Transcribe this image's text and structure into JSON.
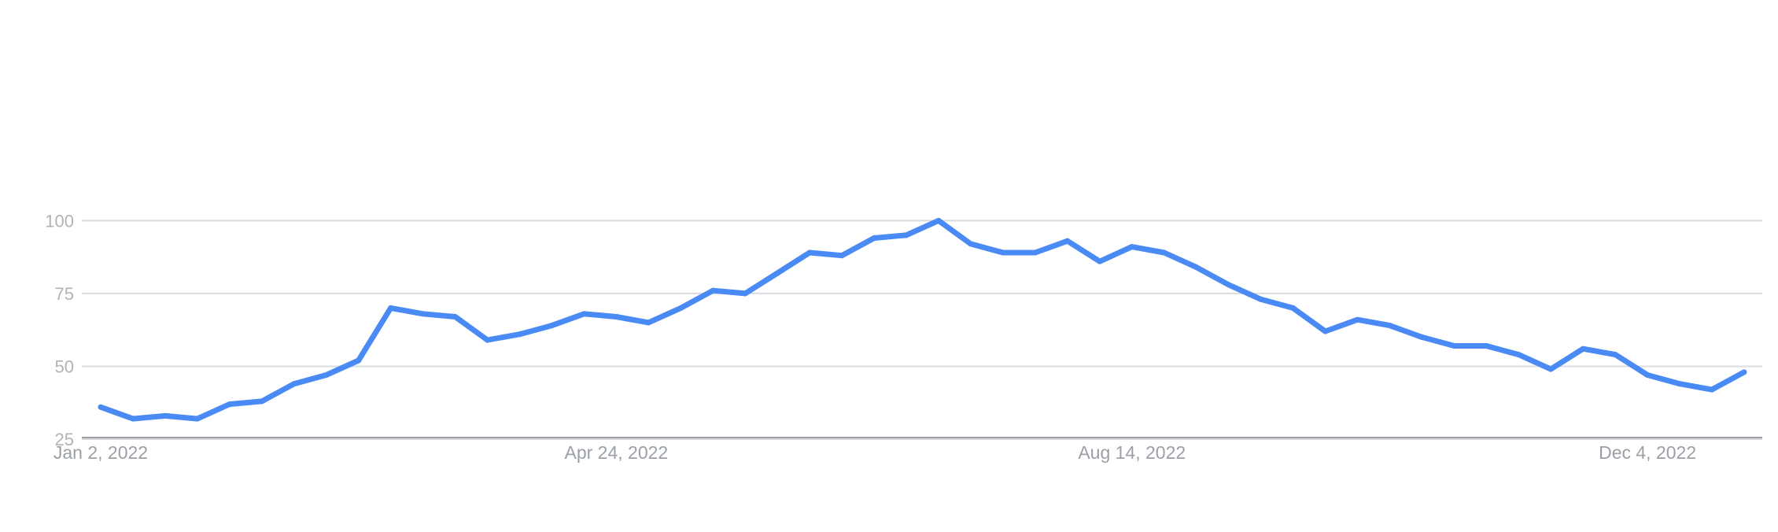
{
  "chart_data": {
    "type": "line",
    "title": "",
    "xlabel": "",
    "ylabel": "",
    "ylim": [
      0,
      100
    ],
    "grid": true,
    "y_ticks": [
      {
        "value": 25,
        "label": "25"
      },
      {
        "value": 50,
        "label": "50"
      },
      {
        "value": 75,
        "label": "75"
      },
      {
        "value": 100,
        "label": "100"
      }
    ],
    "x_ticks": [
      {
        "index": 0,
        "label": "Jan 2, 2022"
      },
      {
        "index": 16,
        "label": "Apr 24, 2022"
      },
      {
        "index": 32,
        "label": "Aug 14, 2022"
      },
      {
        "index": 48,
        "label": "Dec 4, 2022"
      }
    ],
    "x": [
      "2022-01-02",
      "2022-01-09",
      "2022-01-16",
      "2022-01-23",
      "2022-01-30",
      "2022-02-06",
      "2022-02-13",
      "2022-02-20",
      "2022-02-27",
      "2022-03-06",
      "2022-03-13",
      "2022-03-20",
      "2022-03-27",
      "2022-04-03",
      "2022-04-10",
      "2022-04-17",
      "2022-04-24",
      "2022-05-01",
      "2022-05-08",
      "2022-05-15",
      "2022-05-22",
      "2022-05-29",
      "2022-06-05",
      "2022-06-12",
      "2022-06-19",
      "2022-06-26",
      "2022-07-03",
      "2022-07-10",
      "2022-07-17",
      "2022-07-24",
      "2022-07-31",
      "2022-08-07",
      "2022-08-14",
      "2022-08-21",
      "2022-08-28",
      "2022-09-04",
      "2022-09-11",
      "2022-09-18",
      "2022-09-25",
      "2022-10-02",
      "2022-10-09",
      "2022-10-16",
      "2022-10-23",
      "2022-10-30",
      "2022-11-06",
      "2022-11-13",
      "2022-11-20",
      "2022-11-27",
      "2022-12-04",
      "2022-12-11",
      "2022-12-18",
      "2022-12-25"
    ],
    "series": [
      {
        "color": "#4a8af4",
        "values": [
          36,
          32,
          33,
          32,
          37,
          38,
          44,
          47,
          52,
          70,
          68,
          67,
          59,
          61,
          64,
          68,
          67,
          65,
          70,
          76,
          75,
          82,
          89,
          88,
          94,
          95,
          100,
          92,
          89,
          89,
          93,
          86,
          91,
          89,
          84,
          78,
          73,
          70,
          62,
          66,
          64,
          60,
          57,
          57,
          54,
          49,
          56,
          54,
          47,
          44,
          42,
          48
        ]
      }
    ]
  }
}
